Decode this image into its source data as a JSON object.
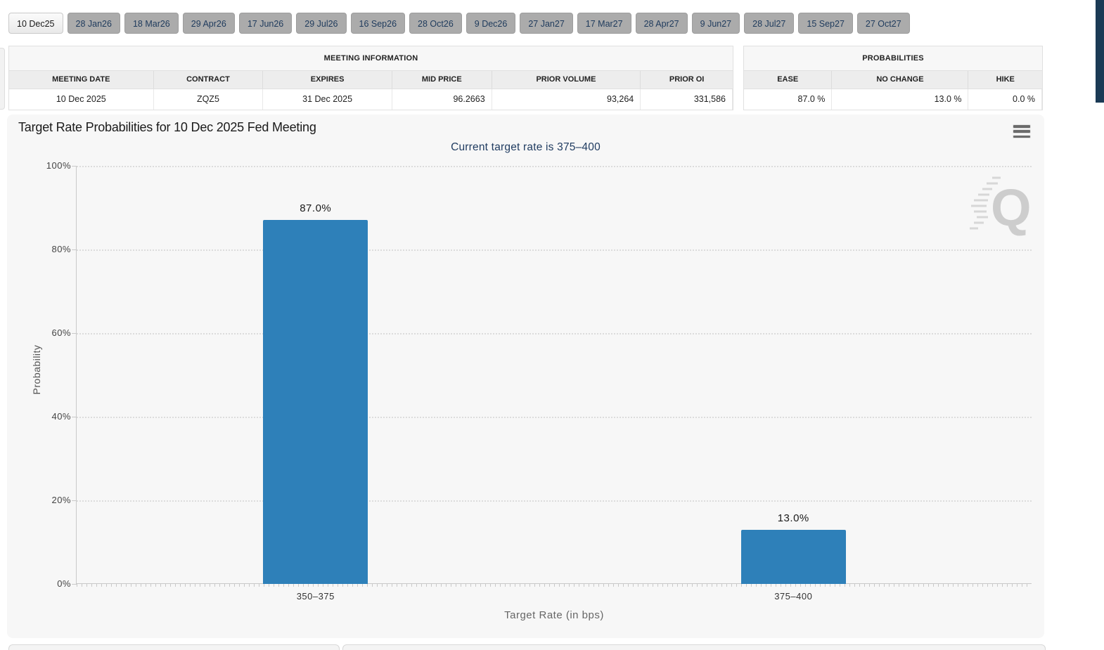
{
  "tabs": {
    "items": [
      {
        "label": "10 Dec25",
        "selected": true
      },
      {
        "label": "28 Jan26",
        "selected": false
      },
      {
        "label": "18 Mar26",
        "selected": false
      },
      {
        "label": "29 Apr26",
        "selected": false
      },
      {
        "label": "17 Jun26",
        "selected": false
      },
      {
        "label": "29 Jul26",
        "selected": false
      },
      {
        "label": "16 Sep26",
        "selected": false
      },
      {
        "label": "28 Oct26",
        "selected": false
      },
      {
        "label": "9 Dec26",
        "selected": false
      },
      {
        "label": "27 Jan27",
        "selected": false
      },
      {
        "label": "17 Mar27",
        "selected": false
      },
      {
        "label": "28 Apr27",
        "selected": false
      },
      {
        "label": "9 Jun27",
        "selected": false
      },
      {
        "label": "28 Jul27",
        "selected": false
      },
      {
        "label": "15 Sep27",
        "selected": false
      },
      {
        "label": "27 Oct27",
        "selected": false
      }
    ]
  },
  "meeting_info": {
    "title": "MEETING INFORMATION",
    "columns": [
      "MEETING DATE",
      "CONTRACT",
      "EXPIRES",
      "MID PRICE",
      "PRIOR VOLUME",
      "PRIOR OI"
    ],
    "row": {
      "meeting_date": "10 Dec 2025",
      "contract": "ZQZ5",
      "expires": "31 Dec 2025",
      "mid_price": "96.2663",
      "prior_volume": "93,264",
      "prior_oi": "331,586"
    }
  },
  "probabilities": {
    "title": "PROBABILITIES",
    "columns": [
      "EASE",
      "NO CHANGE",
      "HIKE"
    ],
    "row": {
      "ease": "87.0 %",
      "no_change": "13.0 %",
      "hike": "0.0 %"
    }
  },
  "chart": {
    "title": "Target Rate Probabilities for 10 Dec 2025 Fed Meeting",
    "subtitle": "Current target rate is 375–400",
    "menu_icon": "hamburger-menu",
    "watermark_letter": "Q"
  },
  "chart_data": {
    "type": "bar",
    "categories": [
      "350–375",
      "375–400"
    ],
    "values": [
      87.0,
      13.0
    ],
    "value_labels": [
      "87.0%",
      "13.0%"
    ],
    "title": "Target Rate Probabilities for 10 Dec 2025 Fed Meeting",
    "subtitle": "Current target rate is 375–400",
    "xlabel": "Target Rate (in bps)",
    "ylabel": "Probability",
    "ylim": [
      0,
      100
    ],
    "ytick_labels": [
      "0%",
      "20%",
      "40%",
      "60%",
      "80%",
      "100%"
    ],
    "grid": true,
    "legend": false,
    "bar_color": "#2e80b9"
  },
  "colors": {
    "bar": "#2e80b9",
    "subtitle_navy": "#1e3a5f",
    "tab_inactive_bg": "#ababab",
    "tab_text_navy": "#1e3a5c",
    "scroll_thumb": "#1b3a55"
  }
}
